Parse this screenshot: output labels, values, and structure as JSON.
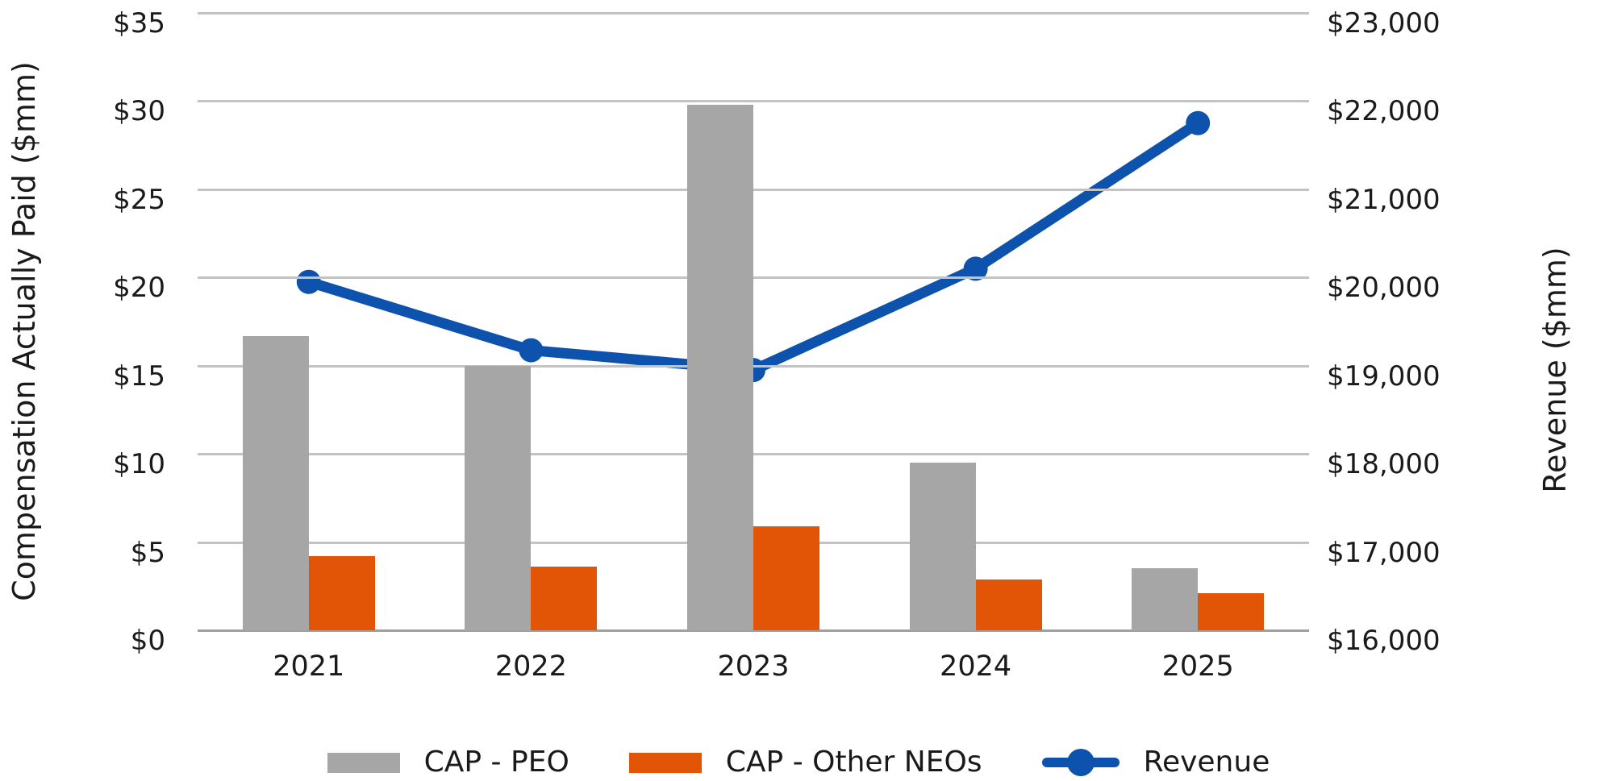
{
  "chart_data": {
    "type": "bar",
    "subtype": "grouped-bars-with-line-overlay",
    "categories": [
      "2021",
      "2022",
      "2023",
      "2024",
      "2025"
    ],
    "series": [
      {
        "name": "CAP - PEO",
        "type": "bar",
        "axis": "left",
        "color": "#a6a6a6",
        "values": [
          16.7,
          15.0,
          29.8,
          9.5,
          3.5
        ]
      },
      {
        "name": "CAP - Other NEOs",
        "type": "bar",
        "axis": "left",
        "color": "#e25406",
        "values": [
          4.2,
          3.6,
          5.9,
          2.9,
          2.1
        ]
      },
      {
        "name": "Revenue",
        "type": "line",
        "axis": "right",
        "color": "#0d52ac",
        "values": [
          19950,
          19175,
          18950,
          20100,
          21750
        ]
      }
    ],
    "left_axis": {
      "title": "Compensation Actually Paid ($mm)",
      "min": 0,
      "max": 35,
      "step": 5,
      "tick_labels": [
        "$0",
        "$5",
        "$10",
        "$15",
        "$20",
        "$25",
        "$30",
        "$35"
      ]
    },
    "right_axis": {
      "title": "Revenue ($mm)",
      "min": 16000,
      "max": 23000,
      "step": 1000,
      "tick_labels": [
        "$16,000",
        "$17,000",
        "$18,000",
        "$19,000",
        "$20,000",
        "$21,000",
        "$22,000",
        "$23,000"
      ]
    },
    "grid": true,
    "legend_position": "bottom",
    "background": "#ffffff",
    "gridline_color": "#c3c3c3",
    "text_color": "#1a1a1a"
  },
  "legend": {
    "items": [
      {
        "label": "CAP - PEO",
        "swatch": "gray-bar-swatch"
      },
      {
        "label": "CAP - Other NEOs",
        "swatch": "orange-bar-swatch"
      },
      {
        "label": "Revenue",
        "swatch": "blue-line-marker-swatch"
      }
    ]
  }
}
